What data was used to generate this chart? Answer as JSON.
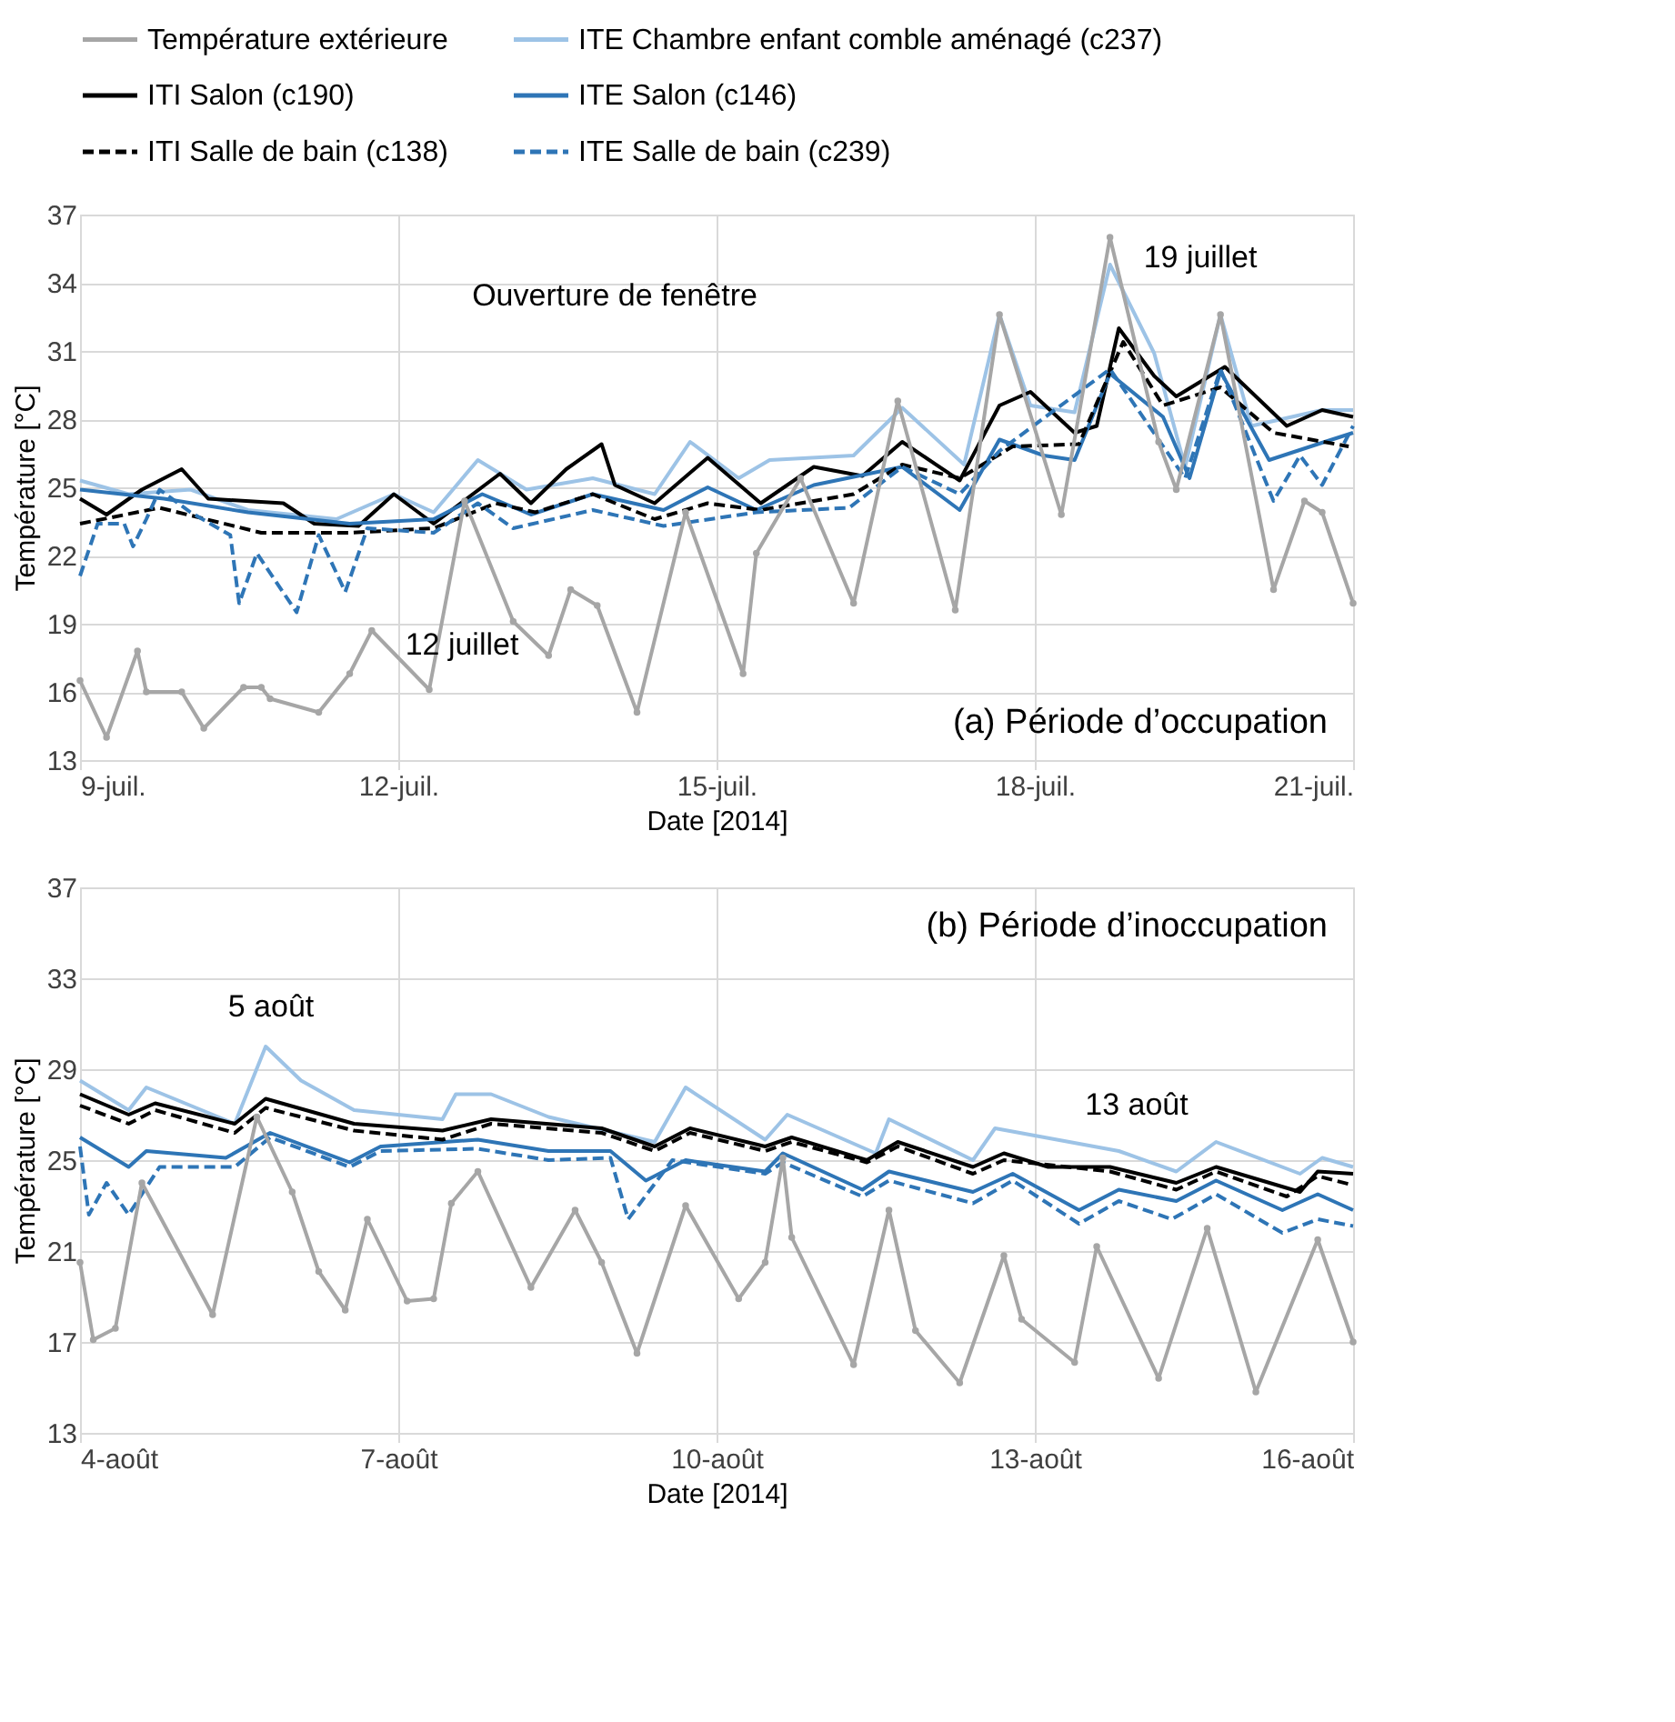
{
  "chart_data": [
    {
      "type": "line",
      "xlabel": "Date [2014]",
      "ylabel": "Température [°C]",
      "grid": true,
      "legend": "top",
      "xlim": [
        "2014-07-09",
        "2014-07-21"
      ],
      "ylim": [
        13,
        37
      ],
      "yticks": [
        13,
        16,
        19,
        22,
        25,
        28,
        31,
        34,
        37
      ],
      "xticks": [
        {
          "value": "2014-07-09",
          "label": "9-juil."
        },
        {
          "value": "2014-07-12",
          "label": "12-juil."
        },
        {
          "value": "2014-07-15",
          "label": "15-juil."
        },
        {
          "value": "2014-07-18",
          "label": "18-juil."
        },
        {
          "value": "2014-07-21",
          "label": "21-juil."
        }
      ],
      "annotations": [
        "Ouverture de fenêtre",
        "12 juillet",
        "19 juillet",
        "(a) Période d’occupation"
      ],
      "series": [
        {
          "name": "Température extérieure",
          "color": "#a6a6a6",
          "marker": "circle",
          "line_style": "solid",
          "x": [
            "2014-07-09T00:00",
            "2014-07-09T06:00",
            "2014-07-09T13:00",
            "2014-07-09T15:00",
            "2014-07-09T23:00",
            "2014-07-10T04:00",
            "2014-07-10T13:00",
            "2014-07-10T17:00",
            "2014-07-10T19:00",
            "2014-07-11T06:00",
            "2014-07-11T13:00",
            "2014-07-11T18:00",
            "2014-07-12T07:00",
            "2014-07-12T15:00",
            "2014-07-13T02:00",
            "2014-07-13T10:00",
            "2014-07-13T15:00",
            "2014-07-13T21:00",
            "2014-07-14T06:00",
            "2014-07-14T17:00",
            "2014-07-15T06:00",
            "2014-07-15T09:00",
            "2014-07-15T19:00",
            "2014-07-16T07:00",
            "2014-07-16T17:00",
            "2014-07-17T06:00",
            "2014-07-17T16:00",
            "2014-07-18T06:00",
            "2014-07-18T17:00",
            "2014-07-19T04:00",
            "2014-07-19T08:00",
            "2014-07-19T18:00",
            "2014-07-20T06:00",
            "2014-07-20T13:00",
            "2014-07-20T17:00",
            "2014-07-21T00:00"
          ],
          "values": [
            16.5,
            14.0,
            17.8,
            16.0,
            16.0,
            14.4,
            16.2,
            16.2,
            15.7,
            15.1,
            16.8,
            18.7,
            16.1,
            24.4,
            19.1,
            17.6,
            20.5,
            19.8,
            15.1,
            23.9,
            16.8,
            22.1,
            25.4,
            19.9,
            28.8,
            19.6,
            32.6,
            23.8,
            36.0,
            27.0,
            24.9,
            32.6,
            20.5,
            24.4,
            23.9,
            19.9
          ]
        },
        {
          "name": "ITE Chambre enfant comble aménagé (c237)",
          "color": "#9dc3e6",
          "line_style": "solid",
          "x": [
            "2014-07-09T00:00",
            "2014-07-09T11:00",
            "2014-07-10T01:00",
            "2014-07-10T14:00",
            "2014-07-11T10:00",
            "2014-07-11T23:00",
            "2014-07-12T08:00",
            "2014-07-12T18:00",
            "2014-07-13T05:00",
            "2014-07-13T20:00",
            "2014-07-14T10:00",
            "2014-07-14T18:00",
            "2014-07-15T05:00",
            "2014-07-15T12:00",
            "2014-07-16T07:00",
            "2014-07-16T18:00",
            "2014-07-17T08:00",
            "2014-07-17T16:00",
            "2014-07-17T23:00",
            "2014-07-18T09:00",
            "2014-07-18T17:00",
            "2014-07-19T03:00",
            "2014-07-19T10:00",
            "2014-07-19T18:00",
            "2014-07-20T01:00",
            "2014-07-20T17:00",
            "2014-07-21T00:00"
          ],
          "values": [
            25.3,
            24.7,
            24.9,
            24.0,
            23.6,
            24.7,
            23.9,
            26.2,
            24.9,
            25.4,
            24.7,
            27.0,
            25.4,
            26.2,
            26.4,
            28.5,
            26.0,
            32.6,
            28.6,
            28.3,
            34.8,
            30.9,
            25.9,
            32.6,
            27.7,
            28.4,
            28.4
          ]
        },
        {
          "name": "ITI Salon (c190)",
          "color": "#000000",
          "line_style": "solid",
          "x": [
            "2014-07-09T00:00",
            "2014-07-09T06:00",
            "2014-07-09T14:00",
            "2014-07-09T23:00",
            "2014-07-10T05:00",
            "2014-07-10T22:00",
            "2014-07-11T05:00",
            "2014-07-11T15:00",
            "2014-07-11T23:00",
            "2014-07-12T08:00",
            "2014-07-12T23:00",
            "2014-07-13T06:00",
            "2014-07-13T14:00",
            "2014-07-13T22:00",
            "2014-07-14T01:00",
            "2014-07-14T10:00",
            "2014-07-14T22:00",
            "2014-07-15T10:00",
            "2014-07-15T22:00",
            "2014-07-16T09:00",
            "2014-07-16T18:00",
            "2014-07-17T07:00",
            "2014-07-17T16:00",
            "2014-07-17T23:00",
            "2014-07-18T09:00",
            "2014-07-18T14:00",
            "2014-07-18T19:00",
            "2014-07-19T03:00",
            "2014-07-19T08:00",
            "2014-07-19T19:00",
            "2014-07-20T09:00",
            "2014-07-20T17:00",
            "2014-07-21T00:00"
          ],
          "values": [
            24.5,
            23.8,
            24.9,
            25.8,
            24.5,
            24.3,
            23.4,
            23.3,
            24.7,
            23.4,
            25.6,
            24.3,
            25.8,
            26.9,
            25.1,
            24.3,
            26.3,
            24.3,
            25.9,
            25.5,
            27.0,
            25.3,
            28.6,
            29.2,
            27.4,
            27.7,
            32.0,
            29.9,
            29.0,
            30.3,
            27.7,
            28.4,
            28.1
          ]
        },
        {
          "name": "ITE Salon (c146)",
          "color": "#2e75b6",
          "line_style": "solid",
          "x": [
            "2014-07-09T00:00",
            "2014-07-09T19:00",
            "2014-07-10T14:00",
            "2014-07-11T13:00",
            "2014-07-12T08:00",
            "2014-07-12T19:00",
            "2014-07-13T06:00",
            "2014-07-13T20:00",
            "2014-07-14T12:00",
            "2014-07-14T22:00",
            "2014-07-15T09:00",
            "2014-07-15T22:00",
            "2014-07-16T18:00",
            "2014-07-17T07:00",
            "2014-07-17T16:00",
            "2014-07-18T02:00",
            "2014-07-18T09:00",
            "2014-07-18T17:00",
            "2014-07-19T05:00",
            "2014-07-19T11:00",
            "2014-07-19T18:00",
            "2014-07-20T05:00",
            "2014-07-20T16:00",
            "2014-07-21T00:00"
          ],
          "values": [
            24.9,
            24.5,
            23.9,
            23.4,
            23.6,
            24.7,
            23.8,
            24.7,
            24.0,
            25.0,
            24.0,
            25.1,
            25.9,
            24.0,
            27.1,
            26.4,
            26.2,
            30.0,
            28.1,
            25.4,
            30.1,
            26.2,
            26.9,
            27.4
          ]
        },
        {
          "name": "ITI Salle de bain (c138)",
          "color": "#000000",
          "line_style": "dashed",
          "x": [
            "2014-07-09T00:00",
            "2014-07-09T18:00",
            "2014-07-10T17:00",
            "2014-07-11T13:00",
            "2014-07-12T08:00",
            "2014-07-12T22:00",
            "2014-07-13T07:00",
            "2014-07-13T20:00",
            "2014-07-14T10:00",
            "2014-07-14T22:00",
            "2014-07-15T10:00",
            "2014-07-16T07:00",
            "2014-07-16T18:00",
            "2014-07-17T07:00",
            "2014-07-17T19:00",
            "2014-07-18T10:00",
            "2014-07-18T20:00",
            "2014-07-19T05:00",
            "2014-07-19T18:00",
            "2014-07-20T06:00",
            "2014-07-20T23:00"
          ],
          "values": [
            23.4,
            24.1,
            23.0,
            23.0,
            23.2,
            24.3,
            23.9,
            24.7,
            23.6,
            24.3,
            24.0,
            24.7,
            26.0,
            25.4,
            26.8,
            26.9,
            31.4,
            28.6,
            29.4,
            27.4,
            26.8
          ]
        },
        {
          "name": "ITE Salle de bain (c239)",
          "color": "#2e75b6",
          "line_style": "dashed",
          "x": [
            "2014-07-09T00:00",
            "2014-07-09T04:00",
            "2014-07-09T10:00",
            "2014-07-09T12:00",
            "2014-07-09T15:00",
            "2014-07-09T18:00",
            "2014-07-10T01:00",
            "2014-07-10T10:00",
            "2014-07-10T12:00",
            "2014-07-10T16:00",
            "2014-07-11T01:00",
            "2014-07-11T06:00",
            "2014-07-11T12:00",
            "2014-07-11T17:00",
            "2014-07-12T08:00",
            "2014-07-12T18:00",
            "2014-07-13T02:00",
            "2014-07-13T20:00",
            "2014-07-14T12:00",
            "2014-07-15T09:00",
            "2014-07-16T06:00",
            "2014-07-16T18:00",
            "2014-07-17T07:00",
            "2014-07-17T16:00",
            "2014-07-18T17:00",
            "2014-07-19T10:00",
            "2014-07-19T18:00",
            "2014-07-20T06:00",
            "2014-07-20T12:00",
            "2014-07-20T17:00",
            "2014-07-21T00:00"
          ],
          "values": [
            21.1,
            23.4,
            23.4,
            22.4,
            23.6,
            24.9,
            23.9,
            22.9,
            19.9,
            22.1,
            19.5,
            22.9,
            20.4,
            23.2,
            23.0,
            24.3,
            23.2,
            24.0,
            23.3,
            23.9,
            24.1,
            25.9,
            24.7,
            26.6,
            30.2,
            25.4,
            30.2,
            24.4,
            26.4,
            25.1,
            27.7
          ]
        }
      ]
    },
    {
      "type": "line",
      "xlabel": "Date [2014]",
      "ylabel": "Température [°C]",
      "grid": true,
      "xlim": [
        "2014-08-04",
        "2014-08-16"
      ],
      "ylim": [
        13,
        37
      ],
      "yticks": [
        13,
        17,
        21,
        25,
        29,
        33,
        37
      ],
      "xticks": [
        {
          "value": "2014-08-04",
          "label": "4-août"
        },
        {
          "value": "2014-08-07",
          "label": "7-août"
        },
        {
          "value": "2014-08-10",
          "label": "10-août"
        },
        {
          "value": "2014-08-13",
          "label": "13-août"
        },
        {
          "value": "2014-08-16",
          "label": "16-août"
        }
      ],
      "annotations": [
        "5 août",
        "13 août",
        "(b) Période d’inoccupation"
      ],
      "series": [
        {
          "color": "#a6a6a6",
          "marker": "circle",
          "line_style": "solid",
          "x": [
            "2014-08-04T00:00",
            "2014-08-04T03:00",
            "2014-08-04T08:00",
            "2014-08-04T14:00",
            "2014-08-05T06:00",
            "2014-08-05T16:00",
            "2014-08-06T00:00",
            "2014-08-06T06:00",
            "2014-08-06T12:00",
            "2014-08-06T17:00",
            "2014-08-07T02:00",
            "2014-08-07T08:00",
            "2014-08-07T12:00",
            "2014-08-07T18:00",
            "2014-08-08T06:00",
            "2014-08-08T16:00",
            "2014-08-08T22:00",
            "2014-08-09T06:00",
            "2014-08-09T17:00",
            "2014-08-10T05:00",
            "2014-08-10T11:00",
            "2014-08-10T15:00",
            "2014-08-10T17:00",
            "2014-08-11T07:00",
            "2014-08-11T15:00",
            "2014-08-11T21:00",
            "2014-08-12T07:00",
            "2014-08-12T17:00",
            "2014-08-12T21:00",
            "2014-08-13T09:00",
            "2014-08-13T14:00",
            "2014-08-14T04:00",
            "2014-08-14T15:00",
            "2014-08-15T02:00",
            "2014-08-15T16:00",
            "2014-08-16T00:00"
          ],
          "values": [
            20.5,
            17.1,
            17.6,
            24.0,
            18.2,
            26.9,
            23.6,
            20.1,
            18.4,
            22.4,
            18.8,
            18.9,
            23.1,
            24.5,
            19.4,
            22.8,
            20.5,
            16.5,
            23.0,
            18.9,
            20.5,
            25.1,
            21.6,
            16.0,
            22.8,
            17.5,
            15.2,
            20.8,
            18.0,
            16.1,
            21.2,
            15.4,
            22.0,
            14.8,
            21.5,
            17.0
          ]
        },
        {
          "color": "#9dc3e6",
          "line_style": "solid",
          "x": [
            "2014-08-04T00:00",
            "2014-08-04T11:00",
            "2014-08-04T15:00",
            "2014-08-05T11:00",
            "2014-08-05T18:00",
            "2014-08-06T02:00",
            "2014-08-06T14:00",
            "2014-08-07T10:00",
            "2014-08-07T13:00",
            "2014-08-07T21:00",
            "2014-08-08T10:00",
            "2014-08-09T10:00",
            "2014-08-09T17:00",
            "2014-08-10T11:00",
            "2014-08-10T16:00",
            "2014-08-11T12:00",
            "2014-08-11T15:00",
            "2014-08-12T10:00",
            "2014-08-12T15:00",
            "2014-08-13T19:00",
            "2014-08-14T08:00",
            "2014-08-14T17:00",
            "2014-08-15T12:00",
            "2014-08-15T17:00",
            "2014-08-16T00:00"
          ],
          "values": [
            28.5,
            27.2,
            28.2,
            26.6,
            30.0,
            28.5,
            27.2,
            26.8,
            27.9,
            27.9,
            26.9,
            25.8,
            28.2,
            25.9,
            27.0,
            25.3,
            26.8,
            25.0,
            26.4,
            25.4,
            24.5,
            25.8,
            24.4,
            25.1,
            24.7
          ]
        },
        {
          "color": "#000000",
          "line_style": "solid",
          "x": [
            "2014-08-04T00:00",
            "2014-08-04T11:00",
            "2014-08-04T17:00",
            "2014-08-05T11:00",
            "2014-08-05T18:00",
            "2014-08-06T14:00",
            "2014-08-07T10:00",
            "2014-08-07T21:00",
            "2014-08-08T22:00",
            "2014-08-09T10:00",
            "2014-08-09T18:00",
            "2014-08-10T11:00",
            "2014-08-10T17:00",
            "2014-08-11T10:00",
            "2014-08-11T17:00",
            "2014-08-12T10:00",
            "2014-08-12T17:00",
            "2014-08-13T03:00",
            "2014-08-13T17:00",
            "2014-08-14T08:00",
            "2014-08-14T17:00",
            "2014-08-15T12:00",
            "2014-08-15T16:00",
            "2014-08-16T00:00"
          ],
          "values": [
            27.9,
            27.0,
            27.5,
            26.6,
            27.7,
            26.6,
            26.3,
            26.8,
            26.4,
            25.6,
            26.4,
            25.6,
            26.0,
            25.0,
            25.8,
            24.7,
            25.3,
            24.7,
            24.7,
            24.0,
            24.7,
            23.6,
            24.5,
            24.4
          ]
        },
        {
          "color": "#2e75b6",
          "line_style": "solid",
          "x": [
            "2014-08-04T00:00",
            "2014-08-04T11:00",
            "2014-08-04T15:00",
            "2014-08-05T09:00",
            "2014-08-05T19:00",
            "2014-08-06T13:00",
            "2014-08-06T20:00",
            "2014-08-07T18:00",
            "2014-08-08T10:00",
            "2014-08-09T00:00",
            "2014-08-09T08:00",
            "2014-08-09T17:00",
            "2014-08-10T11:00",
            "2014-08-10T15:00",
            "2014-08-11T09:00",
            "2014-08-11T15:00",
            "2014-08-12T10:00",
            "2014-08-12T19:00",
            "2014-08-13T10:00",
            "2014-08-13T19:00",
            "2014-08-14T08:00",
            "2014-08-14T17:00",
            "2014-08-15T08:00",
            "2014-08-15T16:00",
            "2014-08-16T00:00"
          ],
          "values": [
            26.0,
            24.7,
            25.4,
            25.1,
            26.2,
            24.9,
            25.6,
            25.9,
            25.4,
            25.4,
            24.1,
            25.0,
            24.5,
            25.3,
            23.7,
            24.5,
            23.6,
            24.4,
            22.8,
            23.7,
            23.2,
            24.1,
            22.8,
            23.5,
            22.8
          ]
        },
        {
          "color": "#000000",
          "line_style": "dashed",
          "x": [
            "2014-08-04T00:00",
            "2014-08-04T11:00",
            "2014-08-04T17:00",
            "2014-08-05T11:00",
            "2014-08-05T18:00",
            "2014-08-06T14:00",
            "2014-08-07T10:00",
            "2014-08-07T21:00",
            "2014-08-08T22:00",
            "2014-08-09T10:00",
            "2014-08-09T18:00",
            "2014-08-10T11:00",
            "2014-08-10T17:00",
            "2014-08-11T10:00",
            "2014-08-11T17:00",
            "2014-08-12T10:00",
            "2014-08-12T17:00",
            "2014-08-13T17:00",
            "2014-08-14T08:00",
            "2014-08-14T17:00",
            "2014-08-15T09:00",
            "2014-08-15T16:00",
            "2014-08-16T00:00"
          ],
          "values": [
            27.4,
            26.6,
            27.2,
            26.2,
            27.3,
            26.3,
            25.9,
            26.6,
            26.2,
            25.4,
            26.2,
            25.4,
            25.8,
            24.9,
            25.6,
            24.4,
            25.0,
            24.5,
            23.7,
            24.5,
            23.4,
            24.3,
            23.9
          ]
        },
        {
          "color": "#2e75b6",
          "line_style": "dashed",
          "x": [
            "2014-08-04T00:00",
            "2014-08-04T02:00",
            "2014-08-04T06:00",
            "2014-08-04T11:00",
            "2014-08-04T18:00",
            "2014-08-05T11:00",
            "2014-08-05T19:00",
            "2014-08-06T13:00",
            "2014-08-06T20:00",
            "2014-08-07T18:00",
            "2014-08-08T10:00",
            "2014-08-09T00:00",
            "2014-08-09T04:00",
            "2014-08-09T14:00",
            "2014-08-10T11:00",
            "2014-08-10T15:00",
            "2014-08-11T09:00",
            "2014-08-11T15:00",
            "2014-08-12T10:00",
            "2014-08-12T19:00",
            "2014-08-13T10:00",
            "2014-08-13T19:00",
            "2014-08-14T07:00",
            "2014-08-14T17:00",
            "2014-08-15T08:00",
            "2014-08-15T16:00",
            "2014-08-16T00:00"
          ],
          "values": [
            25.6,
            22.6,
            24.0,
            22.6,
            24.7,
            24.7,
            26.0,
            24.7,
            25.4,
            25.5,
            25.0,
            25.1,
            22.4,
            25.0,
            24.4,
            24.9,
            23.4,
            24.1,
            23.1,
            24.1,
            22.2,
            23.2,
            22.4,
            23.5,
            21.8,
            22.4,
            22.1
          ]
        }
      ]
    }
  ]
}
